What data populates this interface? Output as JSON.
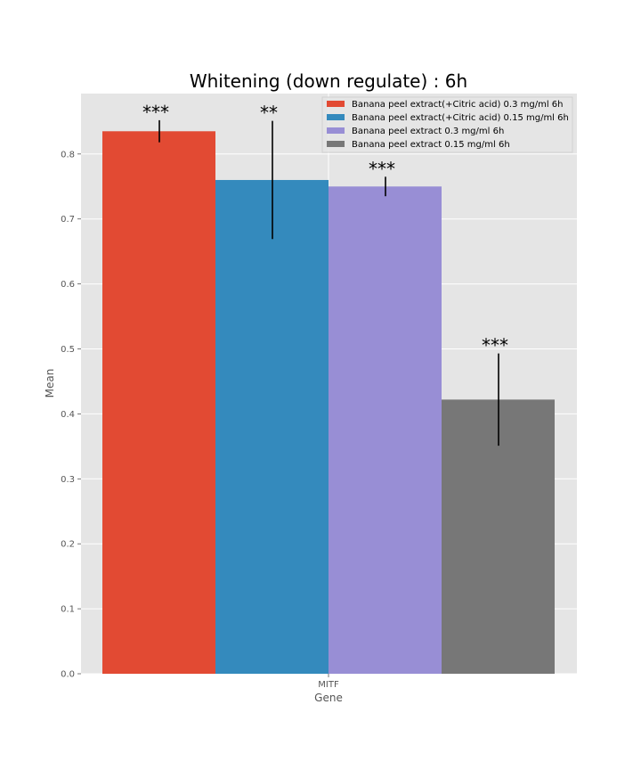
{
  "chart_data": {
    "type": "bar",
    "title": "Whitening (down regulate) : 6h",
    "xlabel": "Gene",
    "ylabel": "Mean",
    "categories": [
      "MITF"
    ],
    "ylim": [
      0,
      0.9
    ],
    "yticks": [
      "0.0",
      "0.1",
      "0.2",
      "0.3",
      "0.4",
      "0.5",
      "0.6",
      "0.7",
      "0.8"
    ],
    "grid": true,
    "legend_position": "top-right",
    "series": [
      {
        "name": "Banana peel extract(+Citric acid) 0.3 mg/ml 6h",
        "values": [
          0.835
        ],
        "error": [
          0.017
        ],
        "significance": "***",
        "color": "#E24A33"
      },
      {
        "name": "Banana peel extract(+Citric acid) 0.15 mg/ml 6h",
        "values": [
          0.76
        ],
        "error": [
          0.091
        ],
        "significance": "**",
        "color": "#348ABD"
      },
      {
        "name": "Banana peel extract 0.3 mg/ml 6h",
        "values": [
          0.75
        ],
        "error": [
          0.015
        ],
        "significance": "***",
        "color": "#988ED5"
      },
      {
        "name": "Banana peel extract 0.15 mg/ml 6h",
        "values": [
          0.422
        ],
        "error": [
          0.071
        ],
        "significance": "***",
        "color": "#777777"
      }
    ]
  }
}
